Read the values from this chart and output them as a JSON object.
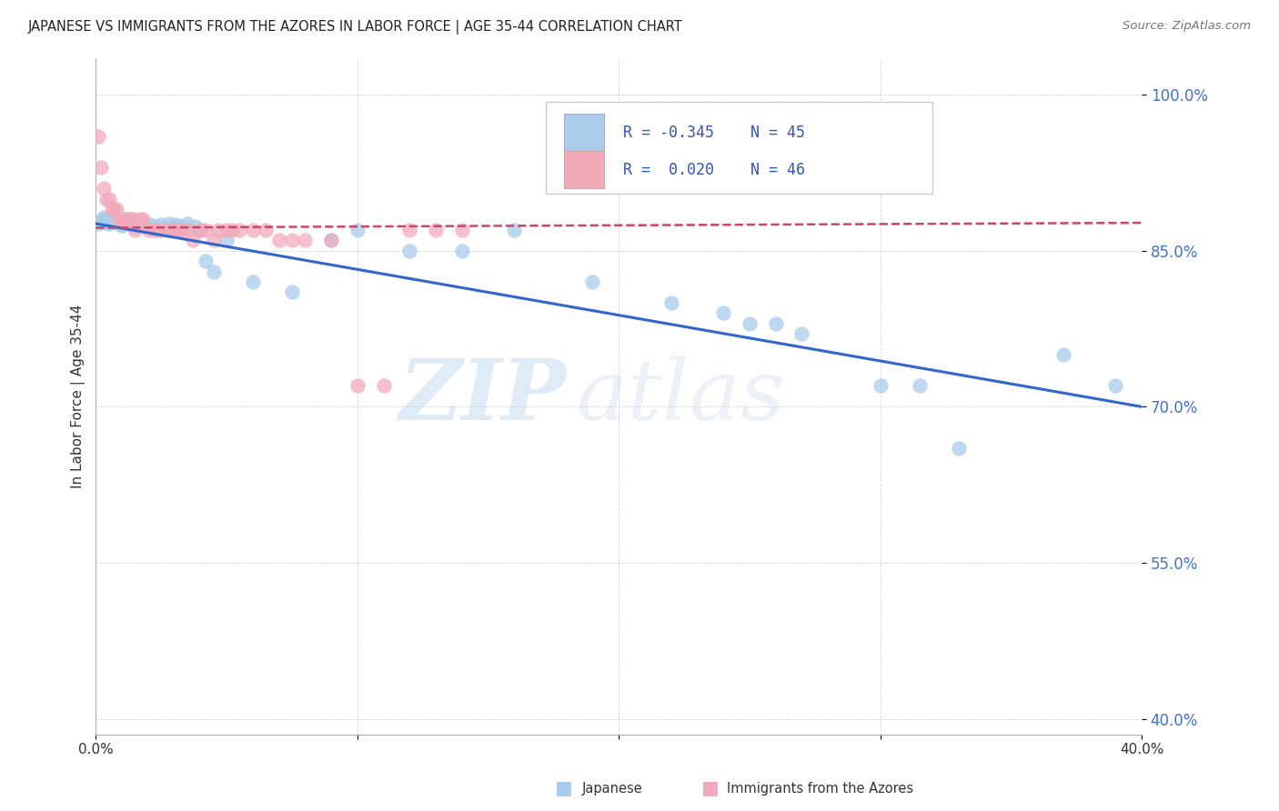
{
  "title": "JAPANESE VS IMMIGRANTS FROM THE AZORES IN LABOR FORCE | AGE 35-44 CORRELATION CHART",
  "source": "Source: ZipAtlas.com",
  "ylabel": "In Labor Force | Age 35-44",
  "ytick_labels": [
    "100.0%",
    "85.0%",
    "70.0%",
    "55.0%",
    "40.0%"
  ],
  "ytick_values": [
    1.0,
    0.85,
    0.7,
    0.55,
    0.4
  ],
  "xlim": [
    0.0,
    0.4
  ],
  "ylim": [
    0.385,
    1.035
  ],
  "legend_blue_R": "R = -0.345",
  "legend_pink_R": "R =  0.020",
  "legend_blue_N": "N = 45",
  "legend_pink_N": "N = 46",
  "blue_color": "#A8CCEA",
  "pink_color": "#F2AABB",
  "blue_line_color": "#3366CC",
  "pink_line_color": "#CC4466",
  "watermark_zip": "ZIP",
  "watermark_atlas": "atlas",
  "blue_scatter_x": [
    0.001,
    0.002,
    0.003,
    0.003,
    0.004,
    0.004,
    0.005,
    0.006,
    0.007,
    0.008,
    0.009,
    0.01,
    0.01,
    0.015,
    0.018,
    0.02,
    0.022,
    0.025,
    0.028,
    0.03,
    0.032,
    0.035,
    0.038,
    0.04,
    0.042,
    0.045,
    0.05,
    0.06,
    0.075,
    0.09,
    0.1,
    0.12,
    0.14,
    0.16,
    0.19,
    0.22,
    0.24,
    0.25,
    0.26,
    0.27,
    0.3,
    0.315,
    0.33,
    0.37,
    0.39
  ],
  "blue_scatter_y": [
    0.876,
    0.878,
    0.882,
    0.88,
    0.879,
    0.877,
    0.876,
    0.877,
    0.88,
    0.878,
    0.876,
    0.875,
    0.874,
    0.873,
    0.876,
    0.875,
    0.874,
    0.875,
    0.876,
    0.875,
    0.874,
    0.876,
    0.873,
    0.87,
    0.84,
    0.83,
    0.86,
    0.82,
    0.81,
    0.86,
    0.87,
    0.85,
    0.85,
    0.87,
    0.82,
    0.8,
    0.79,
    0.78,
    0.78,
    0.77,
    0.72,
    0.72,
    0.66,
    0.75,
    0.72
  ],
  "pink_scatter_x": [
    0.001,
    0.002,
    0.003,
    0.004,
    0.005,
    0.006,
    0.007,
    0.008,
    0.009,
    0.01,
    0.011,
    0.012,
    0.013,
    0.014,
    0.015,
    0.017,
    0.018,
    0.02,
    0.022,
    0.023,
    0.025,
    0.027,
    0.028,
    0.03,
    0.032,
    0.033,
    0.035,
    0.037,
    0.04,
    0.042,
    0.045,
    0.047,
    0.05,
    0.052,
    0.055,
    0.06,
    0.065,
    0.07,
    0.075,
    0.08,
    0.09,
    0.1,
    0.11,
    0.12,
    0.13,
    0.14
  ],
  "pink_scatter_y": [
    0.96,
    0.93,
    0.91,
    0.9,
    0.9,
    0.89,
    0.89,
    0.89,
    0.88,
    0.88,
    0.88,
    0.88,
    0.88,
    0.88,
    0.87,
    0.88,
    0.88,
    0.87,
    0.87,
    0.87,
    0.87,
    0.87,
    0.87,
    0.87,
    0.87,
    0.87,
    0.87,
    0.86,
    0.87,
    0.87,
    0.86,
    0.87,
    0.87,
    0.87,
    0.87,
    0.87,
    0.87,
    0.86,
    0.86,
    0.86,
    0.86,
    0.72,
    0.72,
    0.87,
    0.87,
    0.87
  ],
  "blue_regression": [
    -0.43,
    0.876
  ],
  "pink_regression": [
    0.05,
    0.872
  ],
  "xtick_positions": [
    0.0,
    0.1,
    0.2,
    0.3,
    0.4
  ],
  "xtick_labels_show": [
    "0.0%",
    "",
    "",
    "",
    "40.0%"
  ]
}
